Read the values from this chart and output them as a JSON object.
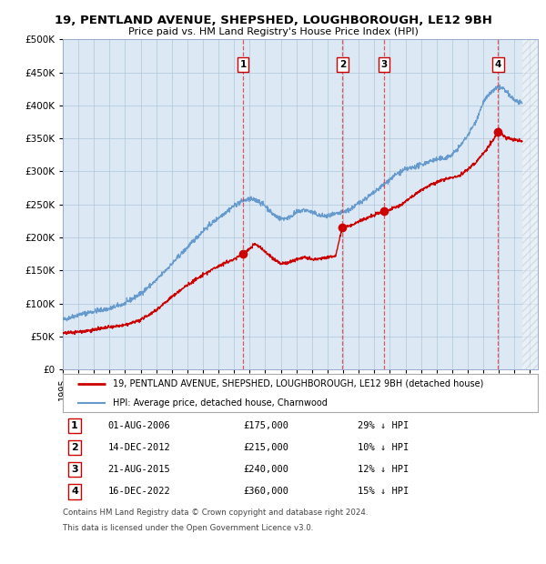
{
  "title": "19, PENTLAND AVENUE, SHEPSHED, LOUGHBOROUGH, LE12 9BH",
  "subtitle": "Price paid vs. HM Land Registry's House Price Index (HPI)",
  "bg_color": "#dce9f5",
  "red_line_color": "#cc0000",
  "blue_line_color": "#6699cc",
  "grid_color": "#aec6d8",
  "ylim": [
    0,
    500000
  ],
  "yticks": [
    0,
    50000,
    100000,
    150000,
    200000,
    250000,
    300000,
    350000,
    400000,
    450000,
    500000
  ],
  "ytick_labels": [
    "£0",
    "£50K",
    "£100K",
    "£150K",
    "£200K",
    "£250K",
    "£300K",
    "£350K",
    "£400K",
    "£450K",
    "£500K"
  ],
  "xlim_start": 1995.0,
  "xlim_end": 2025.5,
  "xticks": [
    1995,
    1996,
    1997,
    1998,
    1999,
    2000,
    2001,
    2002,
    2003,
    2004,
    2005,
    2006,
    2007,
    2008,
    2009,
    2010,
    2011,
    2012,
    2013,
    2014,
    2015,
    2016,
    2017,
    2018,
    2019,
    2020,
    2021,
    2022,
    2023,
    2024,
    2025
  ],
  "sale_dates": [
    2006.583,
    2012.954,
    2015.638,
    2022.958
  ],
  "sale_prices": [
    175000,
    215000,
    240000,
    360000
  ],
  "sale_labels": [
    "1",
    "2",
    "3",
    "4"
  ],
  "sale_info": [
    {
      "label": "1",
      "date": "01-AUG-2006",
      "price": "£175,000",
      "pct": "29%",
      "dir": "↓"
    },
    {
      "label": "2",
      "date": "14-DEC-2012",
      "price": "£215,000",
      "pct": "10%",
      "dir": "↓"
    },
    {
      "label": "3",
      "date": "21-AUG-2015",
      "price": "£240,000",
      "pct": "12%",
      "dir": "↓"
    },
    {
      "label": "4",
      "date": "16-DEC-2022",
      "price": "£360,000",
      "pct": "15%",
      "dir": "↓"
    }
  ],
  "hpi_label": "HPI: Average price, detached house, Charnwood",
  "prop_label": "19, PENTLAND AVENUE, SHEPSHED, LOUGHBOROUGH, LE12 9BH (detached house)",
  "footer1": "Contains HM Land Registry data © Crown copyright and database right 2024.",
  "footer2": "This data is licensed under the Open Government Licence v3.0.",
  "crosshatch_start": 2024.5
}
